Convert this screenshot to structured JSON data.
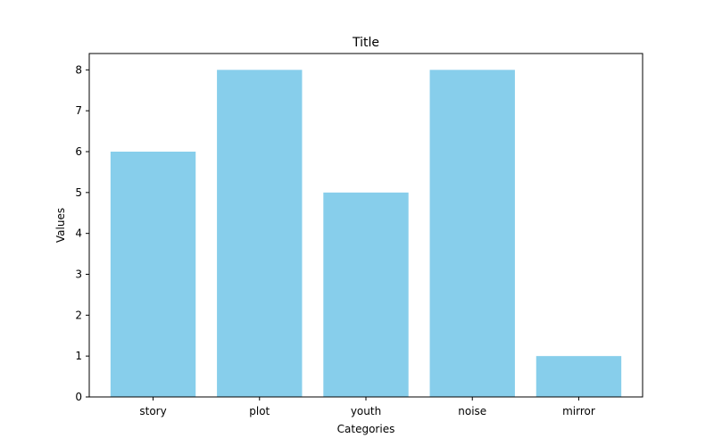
{
  "chart_data": {
    "type": "bar",
    "title": "Title",
    "xlabel": "Categories",
    "ylabel": "Values",
    "categories": [
      "story",
      "plot",
      "youth",
      "noise",
      "mirror"
    ],
    "values": [
      6,
      8,
      5,
      8,
      1
    ],
    "ylim": [
      0,
      8.4
    ],
    "yticks": [
      "0",
      "1",
      "2",
      "3",
      "4",
      "5",
      "6",
      "7",
      "8"
    ],
    "bar_color": "#87ceeb",
    "grid": false,
    "legend": null
  }
}
